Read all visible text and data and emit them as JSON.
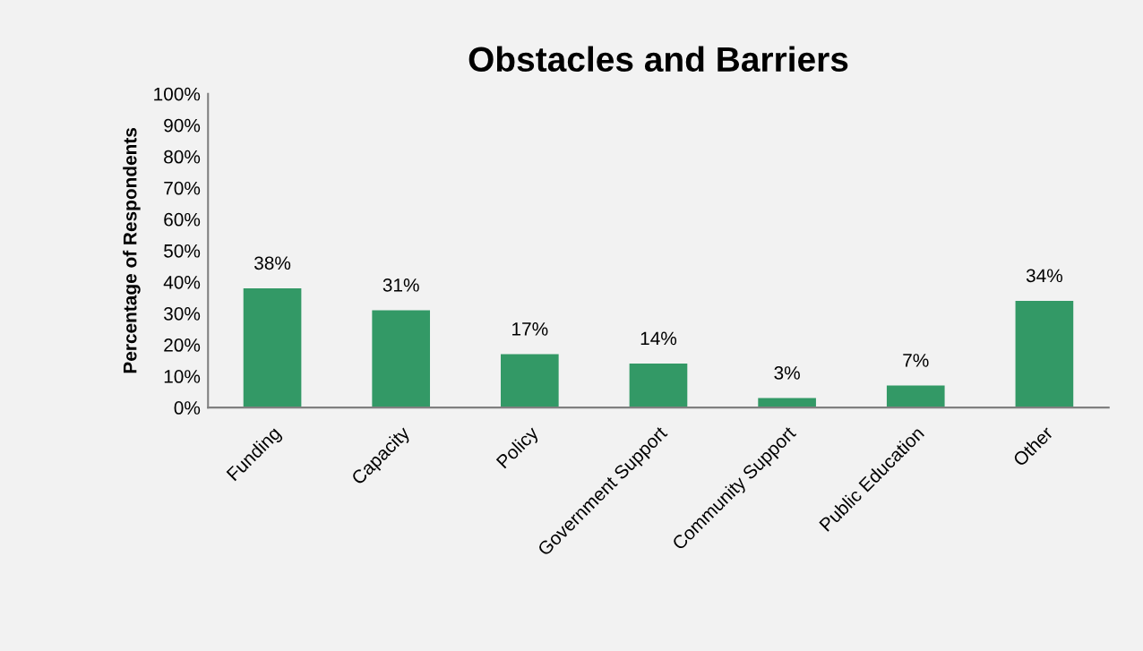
{
  "chart_data": {
    "type": "bar",
    "title": "Obstacles and Barriers",
    "ylabel": "Percentage of Respondents",
    "categories": [
      "Funding",
      "Capacity",
      "Policy",
      "Government Support",
      "Community Support",
      "Public Education",
      "Other"
    ],
    "values": [
      38,
      31,
      17,
      14,
      3,
      7,
      34
    ],
    "value_labels": [
      "38%",
      "31%",
      "17%",
      "14%",
      "3%",
      "7%",
      "34%"
    ],
    "color": "#339966",
    "ylim": [
      0,
      100
    ],
    "yticks": [
      {
        "value": 0,
        "label": "0%"
      },
      {
        "value": 10,
        "label": "10%"
      },
      {
        "value": 20,
        "label": "20%"
      },
      {
        "value": 30,
        "label": "30%"
      },
      {
        "value": 40,
        "label": "40%"
      },
      {
        "value": 50,
        "label": "50%"
      },
      {
        "value": 60,
        "label": "60%"
      },
      {
        "value": 70,
        "label": "70%"
      },
      {
        "value": 80,
        "label": "80%"
      },
      {
        "value": 90,
        "label": "90%"
      },
      {
        "value": 100,
        "label": "100%"
      }
    ],
    "grid": false,
    "legend": false
  }
}
